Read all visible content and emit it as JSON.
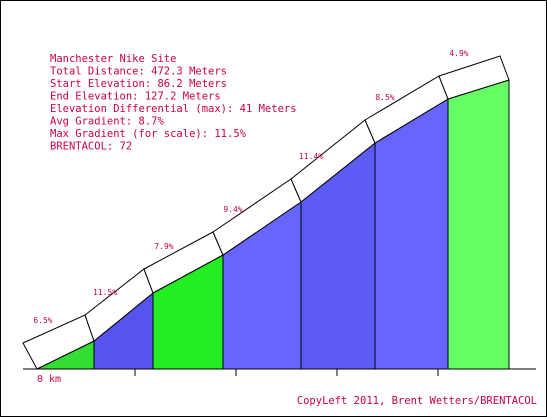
{
  "chart_data": {
    "type": "area",
    "title": "Manchester Nike Site",
    "stats": [
      "Total Distance: 472.3 Meters",
      "Start Elevation: 86.2 Meters",
      "End Elevation: 127.2 Meters",
      "Elevation Differential (max): 41 Meters",
      "Avg Gradient: 8.7%",
      "Max Gradient (for scale): 11.5%",
      "BRENTACOL: 72"
    ],
    "x_start_label": "0 km",
    "copyright": "CopyLeft 2011, Brent Wetters/BRENTACOL",
    "segments": [
      {
        "gradient_label": "6.5%",
        "gradient": 6.5,
        "color": "#33dd33"
      },
      {
        "gradient_label": "11.5%",
        "gradient": 11.5,
        "color": "#5555ee"
      },
      {
        "gradient_label": "7.9%",
        "gradient": 7.9,
        "color": "#22ee22"
      },
      {
        "gradient_label": "9.4%",
        "gradient": 9.4,
        "color": "#6666ff"
      },
      {
        "gradient_label": "11.4%",
        "gradient": 11.4,
        "color": "#5c5cf5"
      },
      {
        "gradient_label": "8.5%",
        "gradient": 8.5,
        "color": "#6666ff"
      },
      {
        "gradient_label": "4.9%",
        "gradient": 4.9,
        "color": "#66ff66"
      }
    ]
  }
}
